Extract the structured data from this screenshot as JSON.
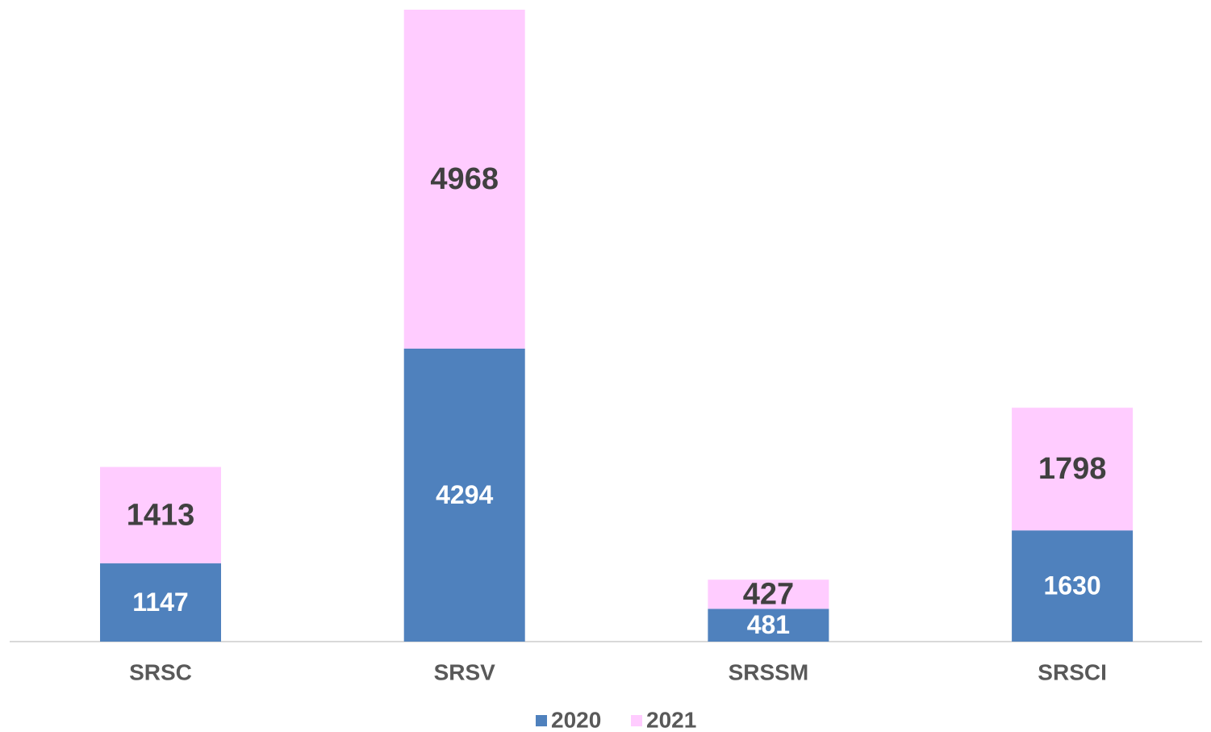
{
  "chart_data": {
    "type": "stacked_bar",
    "categories": [
      "SRSC",
      "SRSV",
      "SRSSM",
      "SRSCI"
    ],
    "series": [
      {
        "name": "2020",
        "color": "#4f81bd",
        "values": [
          1147,
          4294,
          481,
          1630
        ]
      },
      {
        "name": "2021",
        "color": "#ffccff",
        "values": [
          1413,
          4968,
          427,
          1798
        ]
      }
    ],
    "legend": "bottom"
  }
}
